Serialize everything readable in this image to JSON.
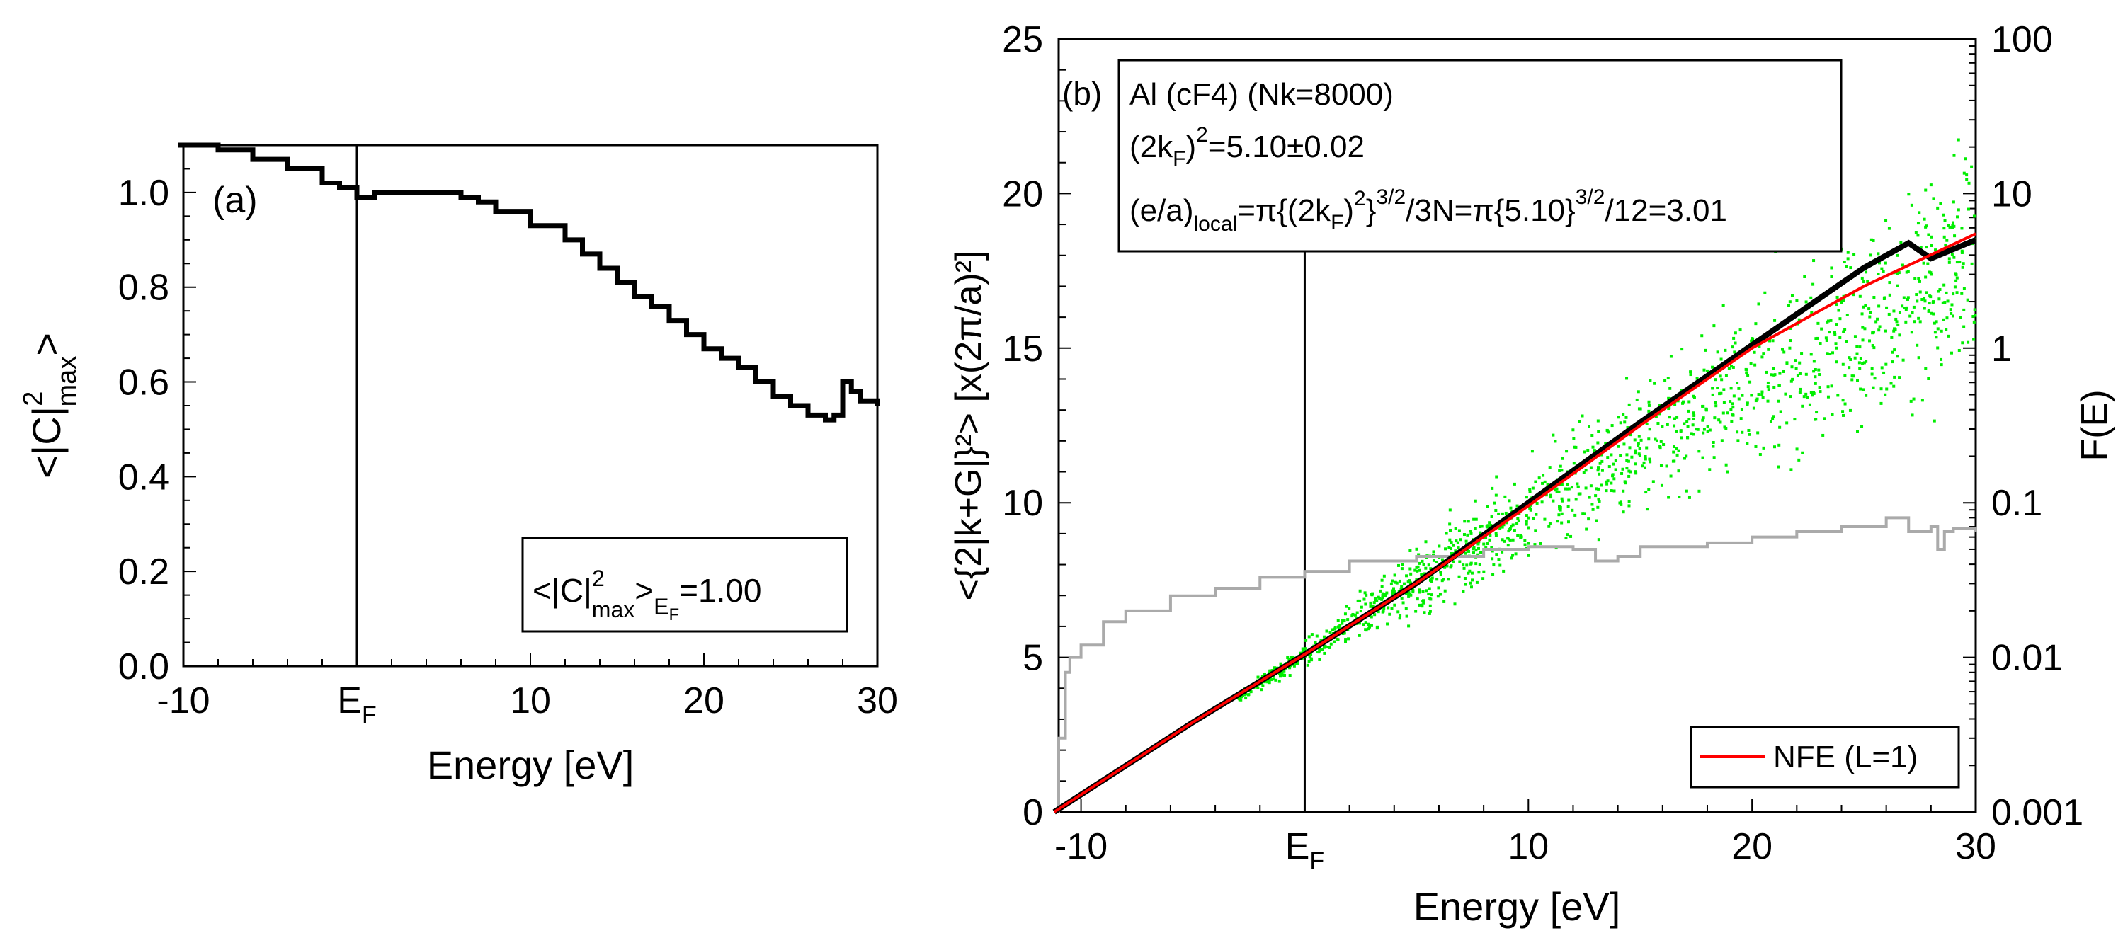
{
  "chart_data": [
    {
      "type": "line",
      "panel_label": "(a)",
      "xlabel": "Energy [eV]",
      "ylabel_parts": {
        "base": "<|C|",
        "sup": "2",
        "sub": "max",
        "close": ">"
      },
      "xlim": [
        -10,
        30
      ],
      "ylim": [
        0.0,
        1.1
      ],
      "xticks": [
        -10,
        0,
        10,
        20,
        30
      ],
      "xtick_labels": [
        "-10",
        "E_F",
        "10",
        "20",
        "30"
      ],
      "yticks": [
        0.0,
        0.2,
        0.4,
        0.6,
        0.8,
        1.0
      ],
      "ytick_labels": [
        "0.0",
        "0.2",
        "0.4",
        "0.6",
        "0.8",
        "1.0"
      ],
      "fermi_energy": 0,
      "annotation": {
        "prefix": "<|C|",
        "sup": "2",
        "sub": "max",
        "mid": ">",
        "sub2": "E",
        "sub3": "F",
        "suffix": "=1.00"
      },
      "series": [
        {
          "color": "#000000",
          "x": [
            -10.3,
            -8.0,
            -6.0,
            -4.0,
            -2.0,
            -1.0,
            0.0,
            1.0,
            3.0,
            4.0,
            5.0,
            6.0,
            7.0,
            8.0,
            10.0,
            12.0,
            13.0,
            14.0,
            15.0,
            16.0,
            17.0,
            18.0,
            19.0,
            20.0,
            21.0,
            22.0,
            23.0,
            24.0,
            25.0,
            26.0,
            27.0,
            27.5,
            28.0,
            28.5,
            29.0,
            30.0
          ],
          "y": [
            1.1,
            1.09,
            1.07,
            1.05,
            1.02,
            1.01,
            0.99,
            1.0,
            1.0,
            1.0,
            1.0,
            0.99,
            0.98,
            0.96,
            0.93,
            0.9,
            0.87,
            0.84,
            0.81,
            0.78,
            0.76,
            0.73,
            0.7,
            0.67,
            0.65,
            0.63,
            0.6,
            0.57,
            0.55,
            0.53,
            0.52,
            0.53,
            0.6,
            0.58,
            0.56,
            0.55
          ]
        }
      ]
    },
    {
      "type": "scatter",
      "panel_label": "(b)",
      "xlabel": "Energy [eV]",
      "ylabel": "<{2|k+G|}²> [x(2π/a)²]",
      "ylabel_right": "F(E)",
      "xlim": [
        -11,
        30
      ],
      "ylim": [
        0,
        25
      ],
      "y2lim_log": [
        0.001,
        100
      ],
      "xticks": [
        -10,
        0,
        10,
        20,
        30
      ],
      "xtick_labels": [
        "-10",
        "E_F",
        "10",
        "20",
        "30"
      ],
      "yticks": [
        0,
        5,
        10,
        15,
        20,
        25
      ],
      "ytick_labels": [
        "0",
        "5",
        "10",
        "15",
        "20",
        "25"
      ],
      "y2ticks": [
        0.001,
        0.01,
        0.1,
        1,
        10,
        100
      ],
      "y2tick_labels": [
        "0.001",
        "0.01",
        "0.1",
        "1",
        "10",
        "100"
      ],
      "fermi_energy": 0,
      "info_box": {
        "line1": "Al (cF4) (Nk=8000)",
        "line2": {
          "a": "(2k",
          "b": "F",
          "c": ")",
          "d": "2",
          "e": "=5.10±0.02"
        },
        "line3": {
          "a": "(e/a)",
          "b": "local",
          "c": "=π{(2k",
          "d": "F",
          "e": ")",
          "f": "2",
          "g": "}",
          "h": "3/2",
          "i": "/3N=π{5.10}",
          "j": "3/2",
          "k": "/12=3.01"
        }
      },
      "legend": {
        "position": "bottom-right",
        "entries": [
          "NFE (L=1)"
        ]
      },
      "series": [
        {
          "name": "NFE (L=1)",
          "color": "#ff0000",
          "x": [
            -11.2,
            -5,
            0,
            5,
            10,
            15,
            20,
            25,
            30
          ],
          "y": [
            0.0,
            2.9,
            5.1,
            7.4,
            9.9,
            12.5,
            15.0,
            17.0,
            18.7
          ]
        },
        {
          "color": "#000000",
          "x": [
            -11.2,
            -5,
            0,
            5,
            10,
            15,
            20,
            25,
            27,
            28,
            30
          ],
          "y": [
            0.0,
            2.9,
            5.1,
            7.4,
            10.0,
            12.6,
            15.1,
            17.6,
            18.4,
            17.9,
            18.5
          ]
        },
        {
          "color": "#00ee00",
          "x": [],
          "y": []
        },
        {
          "axis": "right",
          "color": "#aaaaaa",
          "x": [
            -11.2,
            -11.0,
            -10.7,
            -10.5,
            -10.0,
            -9.0,
            -8.0,
            -6.0,
            -4.0,
            -2.0,
            0.0,
            2.0,
            5.0,
            8.0,
            10.0,
            12.0,
            13.0,
            14.0,
            15.0,
            18.0,
            20.0,
            22.0,
            24.0,
            26.0,
            27.0,
            28.0,
            28.3,
            28.6,
            29.0,
            30.0
          ],
          "y": [
            0.001,
            0.003,
            0.008,
            0.01,
            0.012,
            0.017,
            0.02,
            0.025,
            0.028,
            0.033,
            0.036,
            0.042,
            0.045,
            0.05,
            0.052,
            0.05,
            0.042,
            0.045,
            0.052,
            0.055,
            0.06,
            0.065,
            0.07,
            0.08,
            0.065,
            0.07,
            0.05,
            0.065,
            0.068,
            0.065
          ]
        }
      ]
    }
  ]
}
